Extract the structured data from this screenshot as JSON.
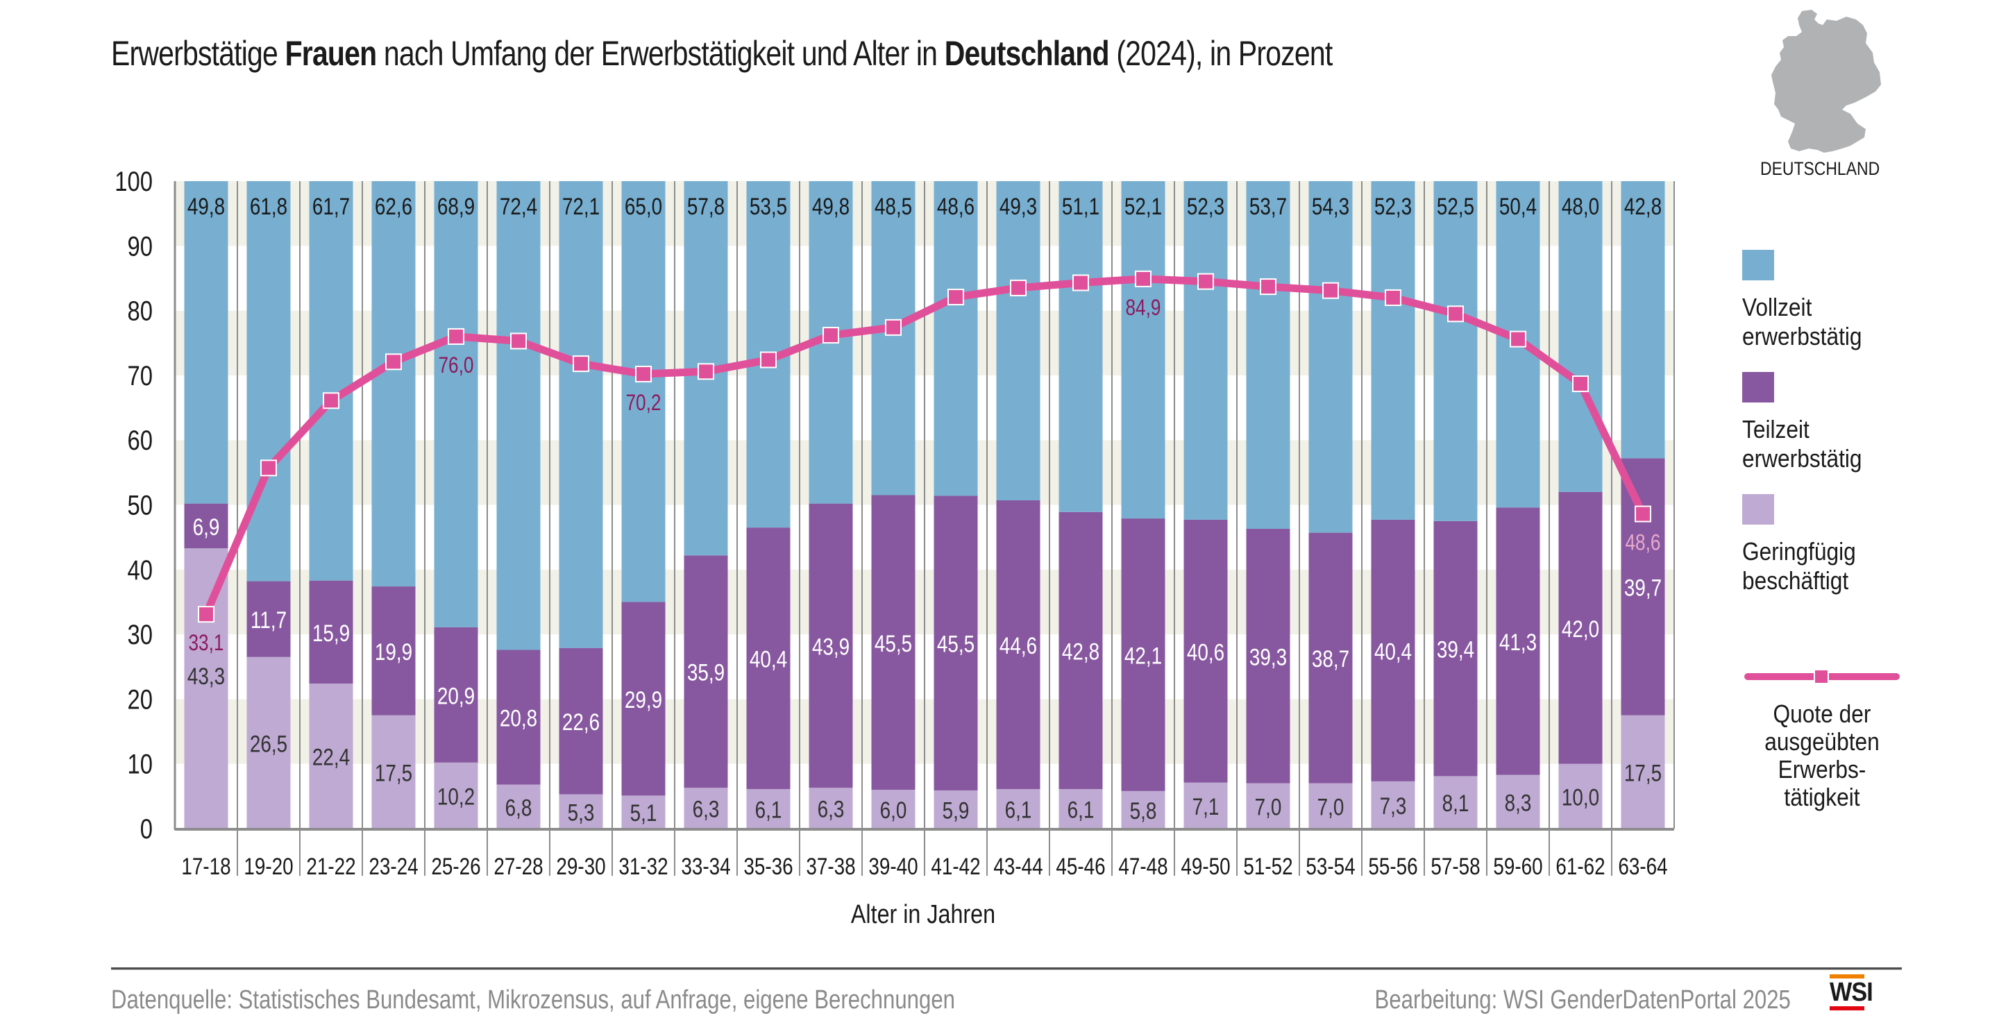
{
  "title": {
    "part1": "Erwerbstätige ",
    "bold1": "Frauen",
    "part2": " nach Umfang der Erwerbstätigkeit und Alter in ",
    "bold2": "Deutschland",
    "part3": " (2024), in Prozent"
  },
  "map": {
    "label": "DEUTSCHLAND",
    "icon": "germany-map-icon"
  },
  "legend": {
    "items": [
      {
        "line1": "Vollzeit",
        "line2": "erwerbstätig",
        "color": "#78afd0"
      },
      {
        "line1": "Teilzeit",
        "line2": "erwerbstätig",
        "color": "#87589f"
      },
      {
        "line1": "Geringfügig",
        "line2": "beschäftigt",
        "color": "#bfaad3"
      }
    ],
    "line_item": {
      "lines": [
        "Quote der",
        "ausgeübten",
        "Erwerbs-",
        "tätigkeit"
      ],
      "color": "#e0509a"
    }
  },
  "footer": {
    "source": "Datenquelle: Statistisches Bundesamt, Mikrozensus, auf Anfrage, eigene Berechnungen",
    "credit": "Bearbeitung: WSI GenderDatenPortal 2025",
    "logo": "WSI"
  },
  "chart_data": {
    "type": "bar",
    "stacked": true,
    "title": "Erwerbstätige Frauen nach Umfang der Erwerbstätigkeit und Alter in Deutschland (2024), in Prozent",
    "xlabel": "Alter in Jahren",
    "ylabel": "",
    "ylim": [
      0,
      100
    ],
    "yticks": [
      0,
      10,
      20,
      30,
      40,
      50,
      60,
      70,
      80,
      90,
      100
    ],
    "grid": "alternating horizontal bands",
    "legend_position": "right",
    "categories": [
      "17-18",
      "19-20",
      "21-22",
      "23-24",
      "25-26",
      "27-28",
      "29-30",
      "31-32",
      "33-34",
      "35-36",
      "37-38",
      "39-40",
      "41-42",
      "43-44",
      "45-46",
      "47-48",
      "49-50",
      "51-52",
      "53-54",
      "55-56",
      "57-58",
      "59-60",
      "61-62",
      "63-64"
    ],
    "series": [
      {
        "name": "Geringfügig beschäftigt",
        "color": "#bfaad3",
        "values": [
          43.3,
          26.5,
          22.4,
          17.5,
          10.2,
          6.8,
          5.3,
          5.1,
          6.3,
          6.1,
          6.3,
          6.0,
          5.9,
          6.1,
          6.1,
          5.8,
          7.1,
          7.0,
          7.0,
          7.3,
          8.1,
          8.3,
          10.0,
          17.5
        ],
        "labels": [
          "43,3",
          "26,5",
          "22,4",
          "17,5",
          "10,2",
          "6,8",
          "5,3",
          "5,1",
          "6,3",
          "6,1",
          "6,3",
          "6,0",
          "5,9",
          "6,1",
          "6,1",
          "5,8",
          "7,1",
          "7,0",
          "7,0",
          "7,3",
          "8,1",
          "8,3",
          "10,0",
          "17,5"
        ]
      },
      {
        "name": "Teilzeit erwerbstätig",
        "color": "#87589f",
        "values": [
          6.9,
          11.7,
          15.9,
          19.9,
          20.9,
          20.8,
          22.6,
          29.9,
          35.9,
          40.4,
          43.9,
          45.5,
          45.5,
          44.6,
          42.8,
          42.1,
          40.6,
          39.3,
          38.7,
          40.4,
          39.4,
          41.3,
          42.0,
          39.7
        ],
        "labels": [
          "6,9",
          "11,7",
          "15,9",
          "19,9",
          "20,9",
          "20,8",
          "22,6",
          "29,9",
          "35,9",
          "40,4",
          "43,9",
          "45,5",
          "45,5",
          "44,6",
          "42,8",
          "42,1",
          "40,6",
          "39,3",
          "38,7",
          "40,4",
          "39,4",
          "41,3",
          "42,0",
          "39,7"
        ]
      },
      {
        "name": "Vollzeit erwerbstätig",
        "color": "#78afd0",
        "values": [
          49.8,
          61.8,
          61.7,
          62.6,
          68.9,
          72.4,
          72.1,
          65.0,
          57.8,
          53.5,
          49.8,
          48.5,
          48.6,
          49.3,
          51.1,
          52.1,
          52.3,
          53.7,
          54.3,
          52.3,
          52.5,
          50.4,
          48.0,
          42.8
        ],
        "labels": [
          "49,8",
          "61,8",
          "61,7",
          "62,6",
          "68,9",
          "72,4",
          "72,1",
          "65,0",
          "57,8",
          "53,5",
          "49,8",
          "48,5",
          "48,6",
          "49,3",
          "51,1",
          "52,1",
          "52,3",
          "53,7",
          "54,3",
          "52,3",
          "52,5",
          "50,4",
          "48,0",
          "42,8"
        ]
      }
    ],
    "line_series": {
      "name": "Quote der ausgeübten Erwerbstätigkeit",
      "color": "#e0509a",
      "values": [
        33.1,
        55.7,
        66.1,
        72.1,
        76.0,
        75.3,
        71.8,
        70.2,
        70.6,
        72.4,
        76.2,
        77.4,
        82.1,
        83.5,
        84.3,
        84.9,
        84.5,
        83.7,
        83.1,
        82.0,
        79.5,
        75.6,
        68.7,
        48.6
      ],
      "annotations": [
        {
          "index": 0,
          "label": "33,1"
        },
        {
          "index": 4,
          "label": "76,0"
        },
        {
          "index": 7,
          "label": "70,2"
        },
        {
          "index": 15,
          "label": "84,9"
        },
        {
          "index": 23,
          "label": "48,6"
        }
      ]
    }
  }
}
